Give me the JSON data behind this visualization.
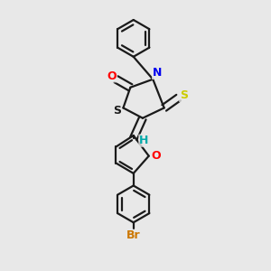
{
  "background_color": "#e8e8e8",
  "bond_color": "#1a1a1a",
  "atom_colors": {
    "O": "#ff0000",
    "N": "#0000ee",
    "S_thioxo": "#cccc00",
    "S_ring": "#1a1a1a",
    "Br": "#cc7700",
    "H": "#00aaaa",
    "C": "#1a1a1a"
  },
  "lw": 1.6,
  "figsize": [
    3.0,
    3.0
  ],
  "dpi": 100
}
